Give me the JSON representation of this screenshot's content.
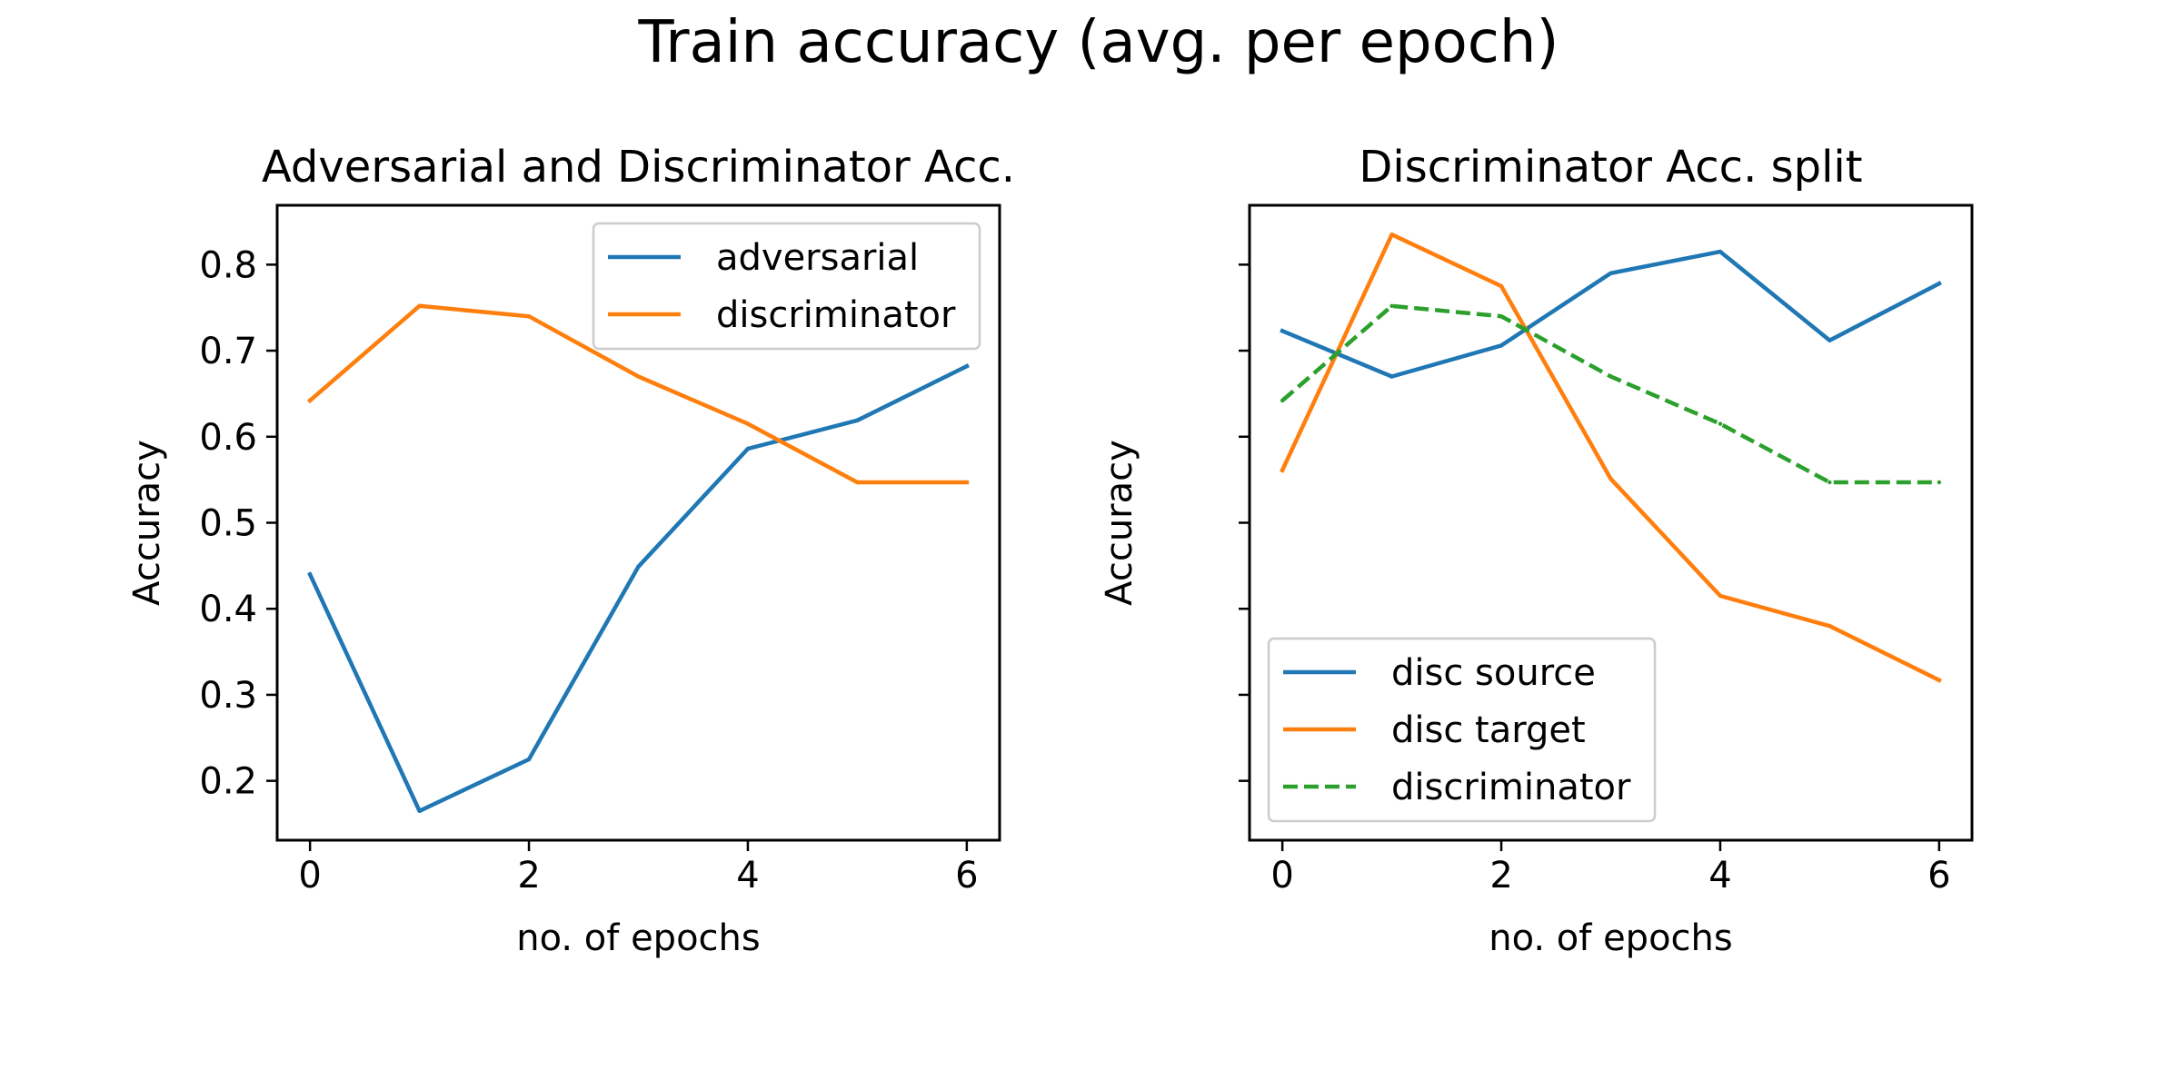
{
  "figure": {
    "suptitle": "Train accuracy (avg. per epoch)"
  },
  "chart_data": [
    {
      "type": "line",
      "title": "Adversarial and Discriminator Acc.",
      "xlabel": "no. of epochs",
      "ylabel": "Accuracy",
      "xlim": [
        -0.3,
        6.3
      ],
      "ylim": [
        0.131,
        0.869
      ],
      "xticks": [
        0,
        2,
        4,
        6
      ],
      "xtick_labels": [
        "0",
        "2",
        "4",
        "6"
      ],
      "yticks": [
        0.2,
        0.3,
        0.4,
        0.5,
        0.6,
        0.7,
        0.8
      ],
      "ytick_labels": [
        "0.2",
        "0.3",
        "0.4",
        "0.5",
        "0.6",
        "0.7",
        "0.8"
      ],
      "show_yticklabels": true,
      "grid": false,
      "legend_position": "upper right",
      "x": [
        0,
        1,
        2,
        3,
        4,
        5,
        6
      ],
      "series": [
        {
          "name": "adversarial",
          "color": "#1f77b4",
          "style": "solid",
          "values": [
            0.44,
            0.165,
            0.225,
            0.449,
            0.586,
            0.619,
            0.682
          ]
        },
        {
          "name": "discriminator",
          "color": "#ff7f0e",
          "style": "solid",
          "values": [
            0.642,
            0.752,
            0.74,
            0.67,
            0.615,
            0.547,
            0.547
          ]
        }
      ]
    },
    {
      "type": "line",
      "title": "Discriminator Acc. split",
      "xlabel": "no. of epochs",
      "ylabel": "Accuracy",
      "xlim": [
        -0.3,
        6.3
      ],
      "ylim": [
        0.131,
        0.869
      ],
      "xticks": [
        0,
        2,
        4,
        6
      ],
      "xtick_labels": [
        "0",
        "2",
        "4",
        "6"
      ],
      "yticks": [
        0.2,
        0.3,
        0.4,
        0.5,
        0.6,
        0.7,
        0.8
      ],
      "ytick_labels": [],
      "show_yticklabels": false,
      "grid": false,
      "legend_position": "lower left",
      "x": [
        0,
        1,
        2,
        3,
        4,
        5,
        6
      ],
      "series": [
        {
          "name": "disc source",
          "color": "#1f77b4",
          "style": "solid",
          "values": [
            0.723,
            0.67,
            0.706,
            0.79,
            0.815,
            0.712,
            0.778
          ]
        },
        {
          "name": "disc target",
          "color": "#ff7f0e",
          "style": "solid",
          "values": [
            0.561,
            0.835,
            0.775,
            0.551,
            0.415,
            0.38,
            0.317
          ]
        },
        {
          "name": "discriminator",
          "color": "#2ca02c",
          "style": "dashed",
          "values": [
            0.642,
            0.752,
            0.74,
            0.67,
            0.615,
            0.547,
            0.547
          ]
        }
      ]
    }
  ]
}
